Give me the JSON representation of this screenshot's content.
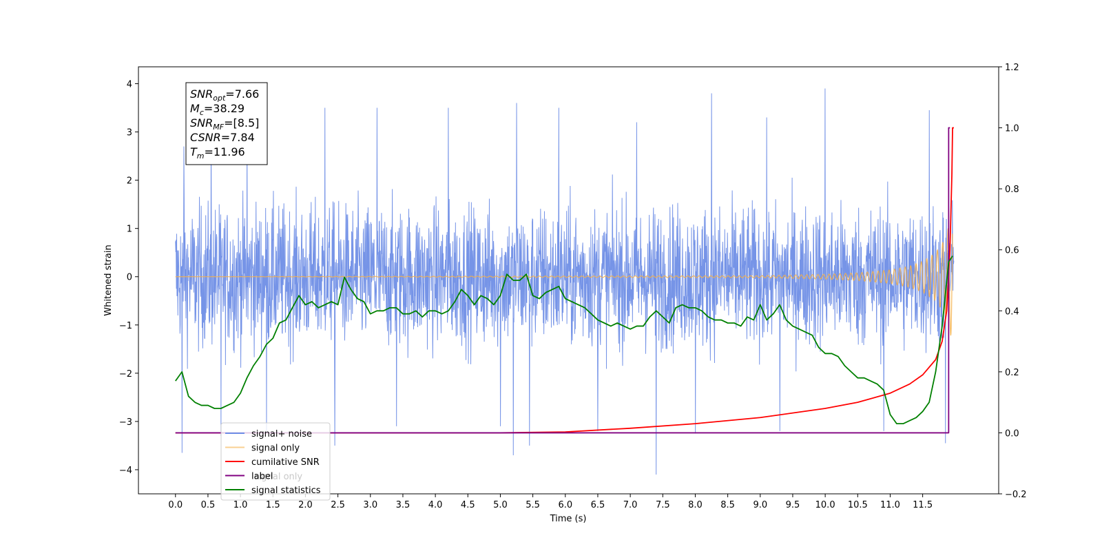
{
  "chart_data": {
    "type": "line",
    "xlabel": "Time (s)",
    "ylabel": "Whitened strain",
    "xlim": [
      -0.57,
      12.67
    ],
    "ylim_left": [
      -4.5,
      4.35
    ],
    "ylim_right": [
      -0.2,
      1.2
    ],
    "x_ticks": [
      "0.0",
      "0.5",
      "1.0",
      "1.5",
      "2.0",
      "2.5",
      "3.0",
      "3.5",
      "4.0",
      "4.5",
      "5.0",
      "5.5",
      "6.0",
      "6.5",
      "7.0",
      "7.5",
      "8.0",
      "8.5",
      "9.0",
      "9.5",
      "10.0",
      "10.5",
      "11.0",
      "11.5"
    ],
    "y_ticks_left": [
      "4",
      "3",
      "2",
      "1",
      "0",
      "−1",
      "−2",
      "−3",
      "−4"
    ],
    "y_ticks_right": [
      "1.2",
      "1.0",
      "0.8",
      "0.6",
      "0.4",
      "0.2",
      "0.0",
      "−0.2"
    ],
    "colors": {
      "signal_noise": "#6f8ee6",
      "signal_only": "#f5b04a",
      "cumulative_snr": "#ff0000",
      "label": "#800080",
      "statistics": "#008000"
    },
    "annotation_lines": [
      {
        "name": "SNR",
        "sub": "opt",
        "value": "=7.66"
      },
      {
        "name": "M",
        "sub": "c",
        "value": "=38.29"
      },
      {
        "name": "SNR",
        "sub": "MF",
        "value": "=[8.5]"
      },
      {
        "name": "CSNR",
        "sub": "",
        "value": "=7.84"
      },
      {
        "name": "T",
        "sub": "m",
        "value": "=11.96"
      }
    ],
    "legend": {
      "location": "lower-left",
      "entries": [
        "signal+ noise",
        "signal only",
        "cumilative SNR",
        "label",
        "signal statistics"
      ],
      "ghost_text": "signal only"
    },
    "series": [
      {
        "name": "signal+ noise",
        "axis": "left",
        "description_range": [
          0,
          11.98
        ],
        "peaks": [
          [
            0.13,
            2.7
          ],
          [
            0.55,
            3.0
          ],
          [
            1.1,
            3.0
          ],
          [
            1.4,
            3.2
          ],
          [
            2.3,
            3.5
          ],
          [
            3.1,
            3.5
          ],
          [
            4.2,
            3.5
          ],
          [
            5.25,
            3.6
          ],
          [
            5.9,
            3.5
          ],
          [
            7.1,
            3.2
          ],
          [
            8.25,
            3.8
          ],
          [
            9.1,
            3.3
          ],
          [
            10.0,
            3.9
          ],
          [
            11.6,
            3.45
          ]
        ],
        "troughs": [
          [
            0.1,
            -3.65
          ],
          [
            0.7,
            -3.3
          ],
          [
            1.4,
            -3.2
          ],
          [
            2.45,
            -3.5
          ],
          [
            3.4,
            -3.1
          ],
          [
            5.0,
            -3.1
          ],
          [
            5.2,
            -3.7
          ],
          [
            5.45,
            -3.5
          ],
          [
            6.5,
            -3.2
          ],
          [
            7.4,
            -4.1
          ],
          [
            8.0,
            -3.25
          ],
          [
            9.3,
            -3.2
          ],
          [
            10.9,
            -3.2
          ],
          [
            11.85,
            -3.45
          ]
        ]
      },
      {
        "name": "signal only",
        "axis": "left",
        "x": [
          0,
          9.0,
          10.0,
          10.5,
          11.0,
          11.3,
          11.5,
          11.7,
          11.85,
          11.93,
          11.96
        ],
        "amplitude": [
          0.0,
          0.02,
          0.05,
          0.08,
          0.14,
          0.22,
          0.32,
          0.5,
          0.8,
          1.2,
          1.5
        ]
      },
      {
        "name": "cumilative SNR",
        "axis": "right",
        "x": [
          0.0,
          5.0,
          6.0,
          7.0,
          8.0,
          9.0,
          9.5,
          10.0,
          10.5,
          11.0,
          11.3,
          11.5,
          11.7,
          11.8,
          11.87,
          11.92,
          11.95,
          11.96,
          11.98
        ],
        "y": [
          0.0,
          0.0,
          0.003,
          0.015,
          0.03,
          0.05,
          0.065,
          0.08,
          0.1,
          0.13,
          0.16,
          0.19,
          0.24,
          0.3,
          0.4,
          0.6,
          0.85,
          1.0,
          1.0
        ]
      },
      {
        "name": "label",
        "axis": "right",
        "x": [
          0.0,
          11.9,
          11.9,
          11.92
        ],
        "y": [
          0.0,
          0.0,
          1.0,
          1.0
        ]
      },
      {
        "name": "signal statistics",
        "axis": "right",
        "x": [
          0.0,
          0.1,
          0.2,
          0.3,
          0.4,
          0.5,
          0.6,
          0.7,
          0.8,
          0.9,
          1.0,
          1.1,
          1.2,
          1.3,
          1.4,
          1.5,
          1.6,
          1.7,
          1.8,
          1.9,
          2.0,
          2.1,
          2.2,
          2.3,
          2.4,
          2.5,
          2.6,
          2.7,
          2.8,
          2.9,
          3.0,
          3.1,
          3.2,
          3.3,
          3.4,
          3.5,
          3.6,
          3.7,
          3.8,
          3.9,
          4.0,
          4.1,
          4.2,
          4.3,
          4.4,
          4.5,
          4.6,
          4.7,
          4.8,
          4.9,
          5.0,
          5.1,
          5.2,
          5.3,
          5.4,
          5.5,
          5.6,
          5.7,
          5.8,
          5.9,
          6.0,
          6.1,
          6.2,
          6.3,
          6.4,
          6.5,
          6.6,
          6.7,
          6.8,
          6.9,
          7.0,
          7.1,
          7.2,
          7.3,
          7.4,
          7.5,
          7.6,
          7.7,
          7.8,
          7.9,
          8.0,
          8.1,
          8.2,
          8.3,
          8.4,
          8.5,
          8.6,
          8.7,
          8.8,
          8.9,
          9.0,
          9.1,
          9.2,
          9.3,
          9.4,
          9.5,
          9.6,
          9.7,
          9.8,
          9.9,
          10.0,
          10.1,
          10.2,
          10.3,
          10.4,
          10.5,
          10.6,
          10.7,
          10.8,
          10.9,
          11.0,
          11.1,
          11.2,
          11.3,
          11.4,
          11.5,
          11.6,
          11.7,
          11.8,
          11.9,
          11.96
        ],
        "y": [
          0.17,
          0.2,
          0.12,
          0.1,
          0.09,
          0.09,
          0.08,
          0.08,
          0.09,
          0.1,
          0.13,
          0.18,
          0.22,
          0.25,
          0.29,
          0.31,
          0.36,
          0.37,
          0.41,
          0.45,
          0.42,
          0.43,
          0.41,
          0.42,
          0.43,
          0.42,
          0.51,
          0.47,
          0.44,
          0.43,
          0.39,
          0.4,
          0.4,
          0.41,
          0.41,
          0.39,
          0.39,
          0.4,
          0.38,
          0.4,
          0.4,
          0.39,
          0.4,
          0.43,
          0.47,
          0.45,
          0.42,
          0.45,
          0.44,
          0.42,
          0.45,
          0.52,
          0.5,
          0.5,
          0.52,
          0.45,
          0.44,
          0.46,
          0.47,
          0.48,
          0.44,
          0.43,
          0.42,
          0.41,
          0.39,
          0.37,
          0.36,
          0.35,
          0.36,
          0.35,
          0.34,
          0.35,
          0.35,
          0.38,
          0.4,
          0.38,
          0.36,
          0.41,
          0.42,
          0.41,
          0.41,
          0.4,
          0.38,
          0.37,
          0.37,
          0.36,
          0.36,
          0.35,
          0.38,
          0.37,
          0.42,
          0.37,
          0.39,
          0.42,
          0.37,
          0.35,
          0.34,
          0.33,
          0.32,
          0.28,
          0.26,
          0.26,
          0.25,
          0.22,
          0.2,
          0.18,
          0.18,
          0.17,
          0.16,
          0.14,
          0.06,
          0.03,
          0.03,
          0.04,
          0.05,
          0.07,
          0.1,
          0.2,
          0.35,
          0.56,
          0.58
        ]
      }
    ]
  }
}
